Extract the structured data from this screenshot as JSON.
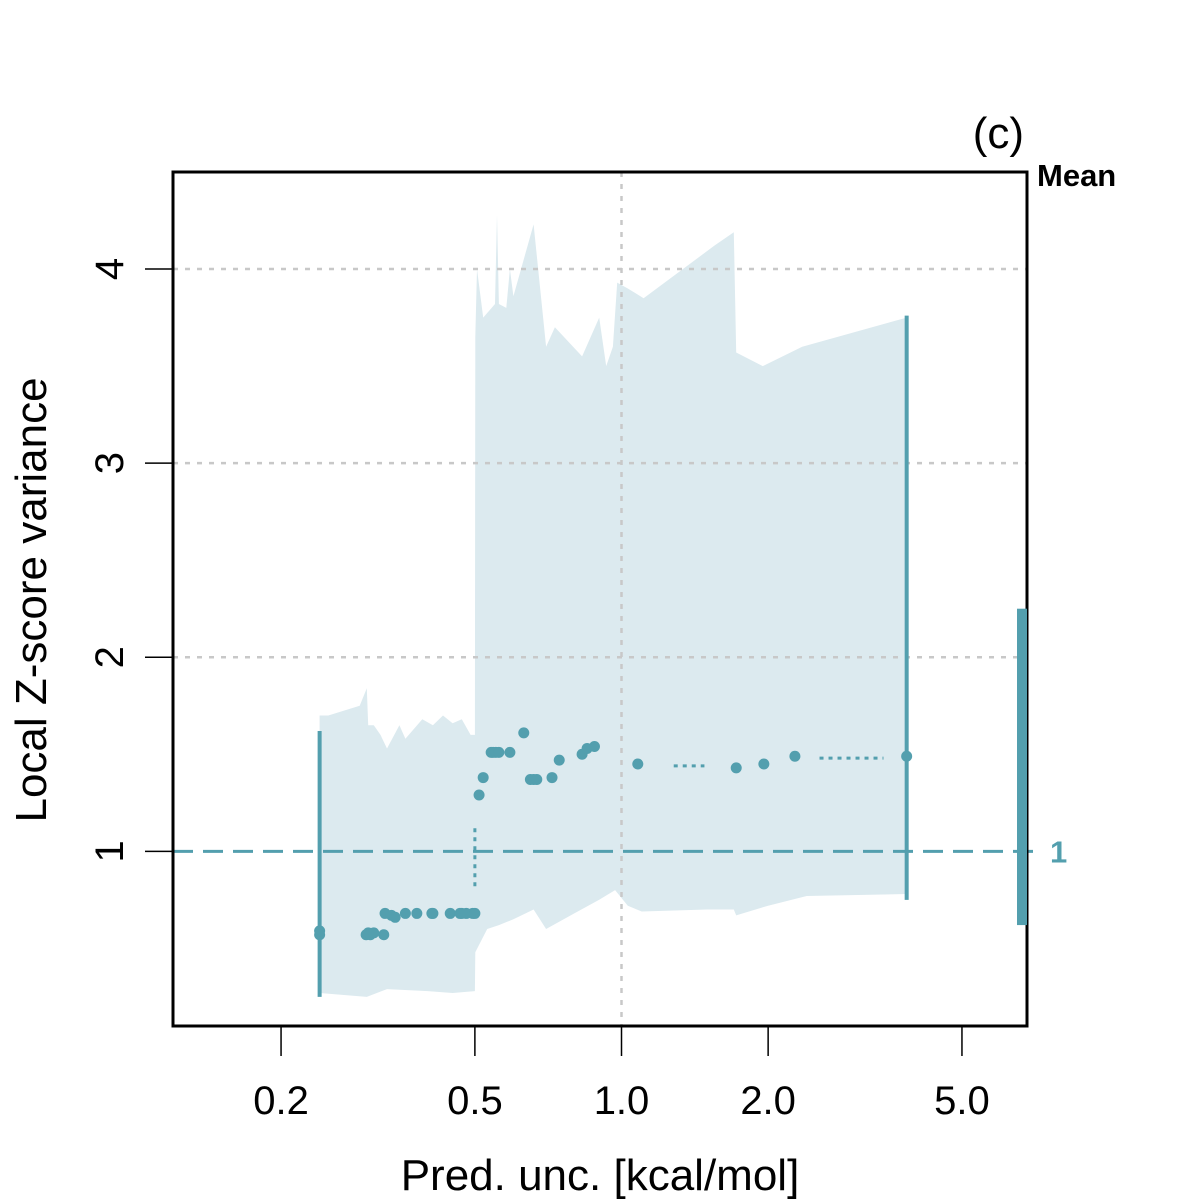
{
  "chart_data": {
    "type": "scatter",
    "panel_label": "(c)",
    "xlabel": "Pred. unc. [kcal/mol]",
    "ylabel": "Local Z-score variance",
    "x_scale": "log",
    "xlim": [
      0.12,
      6.8
    ],
    "ylim": [
      0.1,
      4.5
    ],
    "x_ticks": [
      0.2,
      0.5,
      1.0,
      2.0,
      5.0
    ],
    "x_tick_labels": [
      "0.2",
      "0.5",
      "1.0",
      "2.0",
      "5.0"
    ],
    "y_ticks": [
      1,
      2,
      3,
      4
    ],
    "y_tick_labels": [
      "1",
      "2",
      "3",
      "4"
    ],
    "grid": {
      "vertical": [
        1.0
      ],
      "horizontal": [
        2,
        3,
        4
      ]
    },
    "reference_line": {
      "y": 1,
      "label": "1"
    },
    "mean_panel": {
      "title": "Mean",
      "low": 0.62,
      "high": 2.25
    },
    "colors": {
      "points": "#539fae",
      "band": "#dceaef",
      "grid": "#c8c8c8",
      "axes": "#000000"
    },
    "band": {
      "upper": [
        [
          0.24,
          1.7
        ],
        [
          0.25,
          1.7
        ],
        [
          0.29,
          1.75
        ],
        [
          0.3,
          1.84
        ],
        [
          0.302,
          1.65
        ],
        [
          0.31,
          1.65
        ],
        [
          0.32,
          1.6
        ],
        [
          0.33,
          1.53
        ],
        [
          0.35,
          1.65
        ],
        [
          0.36,
          1.58
        ],
        [
          0.39,
          1.68
        ],
        [
          0.41,
          1.65
        ],
        [
          0.43,
          1.7
        ],
        [
          0.45,
          1.66
        ],
        [
          0.47,
          1.68
        ],
        [
          0.49,
          1.6
        ],
        [
          0.5,
          1.6
        ],
        [
          0.501,
          3.65
        ],
        [
          0.505,
          4.0
        ],
        [
          0.52,
          3.75
        ],
        [
          0.55,
          3.82
        ],
        [
          0.555,
          4.28
        ],
        [
          0.56,
          3.82
        ],
        [
          0.58,
          3.8
        ],
        [
          0.59,
          4.0
        ],
        [
          0.6,
          3.86
        ],
        [
          0.66,
          4.23
        ],
        [
          0.7,
          3.6
        ],
        [
          0.73,
          3.7
        ],
        [
          0.83,
          3.55
        ],
        [
          0.9,
          3.75
        ],
        [
          0.93,
          3.5
        ],
        [
          0.96,
          3.6
        ],
        [
          0.98,
          3.93
        ],
        [
          1.03,
          3.9
        ],
        [
          1.11,
          3.85
        ],
        [
          1.55,
          4.12
        ],
        [
          1.7,
          4.19
        ],
        [
          1.72,
          3.57
        ],
        [
          1.95,
          3.5
        ],
        [
          2.35,
          3.6
        ],
        [
          3.85,
          3.75
        ]
      ],
      "lower": [
        [
          0.24,
          0.27
        ],
        [
          0.3,
          0.25
        ],
        [
          0.33,
          0.29
        ],
        [
          0.4,
          0.28
        ],
        [
          0.45,
          0.27
        ],
        [
          0.5,
          0.28
        ],
        [
          0.501,
          0.48
        ],
        [
          0.53,
          0.6
        ],
        [
          0.56,
          0.62
        ],
        [
          0.6,
          0.65
        ],
        [
          0.66,
          0.7
        ],
        [
          0.7,
          0.6
        ],
        [
          0.8,
          0.68
        ],
        [
          0.9,
          0.75
        ],
        [
          0.97,
          0.8
        ],
        [
          1.03,
          0.72
        ],
        [
          1.1,
          0.69
        ],
        [
          1.5,
          0.7
        ],
        [
          1.7,
          0.7
        ],
        [
          1.72,
          0.67
        ],
        [
          2.0,
          0.72
        ],
        [
          2.4,
          0.77
        ],
        [
          3.85,
          0.78
        ]
      ]
    },
    "error_bars": [
      {
        "x": 0.24,
        "low": 0.25,
        "high": 1.62
      },
      {
        "x": 3.85,
        "low": 0.75,
        "high": 3.76
      }
    ],
    "dotted_segments": [
      {
        "x": [
          0.5,
          0.5
        ],
        "y": [
          0.82,
          1.14
        ]
      },
      {
        "x": [
          1.28,
          1.48
        ],
        "y": [
          1.44,
          1.44
        ]
      },
      {
        "x": [
          2.55,
          3.45
        ],
        "y": [
          1.48,
          1.48
        ]
      }
    ],
    "points": [
      [
        0.24,
        0.57
      ],
      [
        0.24,
        0.59
      ],
      [
        0.299,
        0.57
      ],
      [
        0.302,
        0.58
      ],
      [
        0.305,
        0.57
      ],
      [
        0.31,
        0.58
      ],
      [
        0.325,
        0.57
      ],
      [
        0.327,
        0.68
      ],
      [
        0.337,
        0.67
      ],
      [
        0.343,
        0.66
      ],
      [
        0.36,
        0.68
      ],
      [
        0.38,
        0.68
      ],
      [
        0.408,
        0.68
      ],
      [
        0.41,
        0.68
      ],
      [
        0.445,
        0.68
      ],
      [
        0.466,
        0.68
      ],
      [
        0.47,
        0.68
      ],
      [
        0.48,
        0.68
      ],
      [
        0.495,
        0.68
      ],
      [
        0.5,
        0.68
      ],
      [
        0.51,
        1.29
      ],
      [
        0.52,
        1.38
      ],
      [
        0.54,
        1.51
      ],
      [
        0.545,
        1.51
      ],
      [
        0.552,
        1.51
      ],
      [
        0.56,
        1.51
      ],
      [
        0.59,
        1.51
      ],
      [
        0.63,
        1.61
      ],
      [
        0.65,
        1.37
      ],
      [
        0.66,
        1.37
      ],
      [
        0.67,
        1.37
      ],
      [
        0.72,
        1.38
      ],
      [
        0.745,
        1.47
      ],
      [
        0.83,
        1.5
      ],
      [
        0.85,
        1.53
      ],
      [
        0.88,
        1.54
      ],
      [
        1.08,
        1.45
      ],
      [
        1.72,
        1.43
      ],
      [
        1.96,
        1.45
      ],
      [
        2.27,
        1.49
      ],
      [
        3.85,
        1.49
      ]
    ]
  }
}
